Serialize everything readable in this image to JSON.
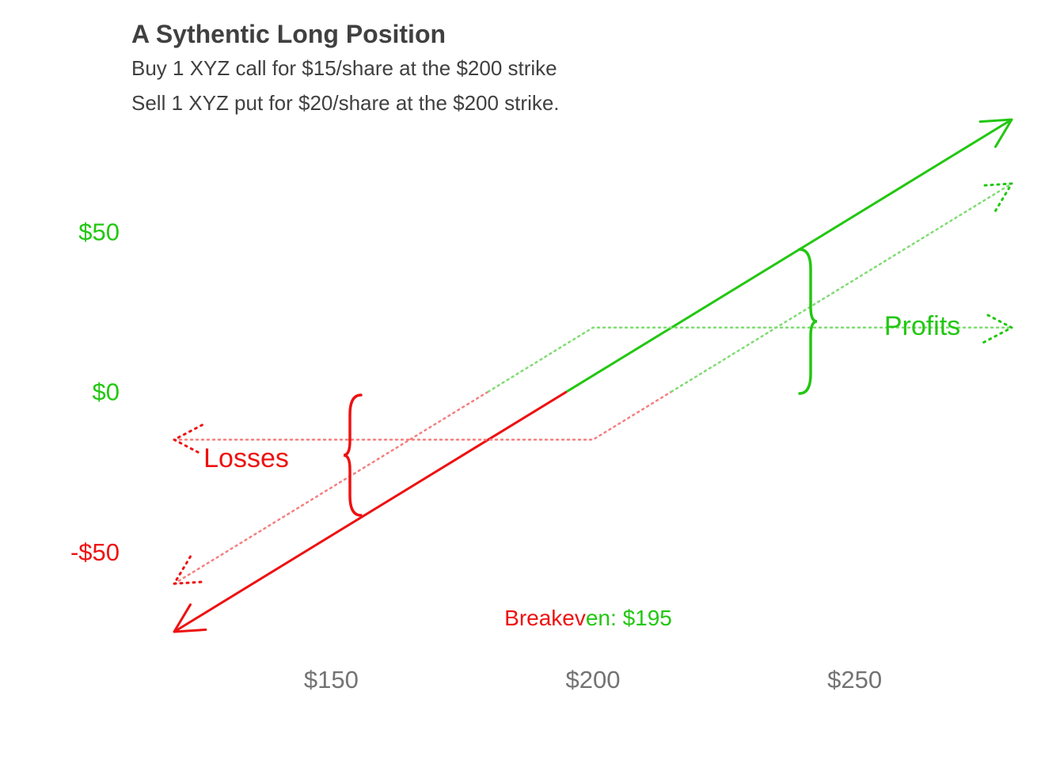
{
  "chart_data": {
    "type": "line",
    "title": "A Sythentic Long Position",
    "subtitle_lines": [
      "Buy 1 XYZ call for $15/share at the $200 strike",
      "Sell 1 XYZ put for $20/share at the $200 strike."
    ],
    "xlabel": "",
    "ylabel": "",
    "xlim": [
      120,
      280
    ],
    "ylim": [
      -75,
      85
    ],
    "x_ticks": [
      {
        "value": 150,
        "label": "$150"
      },
      {
        "value": 200,
        "label": "$200"
      },
      {
        "value": 250,
        "label": "$250"
      }
    ],
    "y_ticks": [
      {
        "value": 50,
        "label": "$50",
        "color": "#22c711"
      },
      {
        "value": 0,
        "label": "$0",
        "color": "#22c711"
      },
      {
        "value": -50,
        "label": "-$50",
        "color": "#ee1111"
      }
    ],
    "grid": false,
    "legend": "none",
    "colors": {
      "profit": "#22c711",
      "loss": "#ee1111",
      "profit_light": "#7fdc72",
      "loss_light": "#f47f7f",
      "title": "#404040",
      "axis_text": "#737373"
    },
    "series": [
      {
        "style": "solid",
        "points": [
          [
            120,
            -75
          ],
          [
            280,
            85
          ]
        ],
        "breakeven_x": 195
      },
      {
        "style": "dotted",
        "points": [
          [
            120,
            -60
          ],
          [
            200,
            20
          ],
          [
            280,
            20
          ]
        ],
        "breakeven_x": 180
      },
      {
        "style": "dotted",
        "points": [
          [
            120,
            -15
          ],
          [
            200,
            -15
          ],
          [
            280,
            65
          ]
        ],
        "breakeven_x": 215
      }
    ],
    "annotations": {
      "profits_label": "Profits",
      "losses_label": "Losses",
      "breakeven_red": "Breakev",
      "breakeven_green": "en: $195"
    }
  }
}
